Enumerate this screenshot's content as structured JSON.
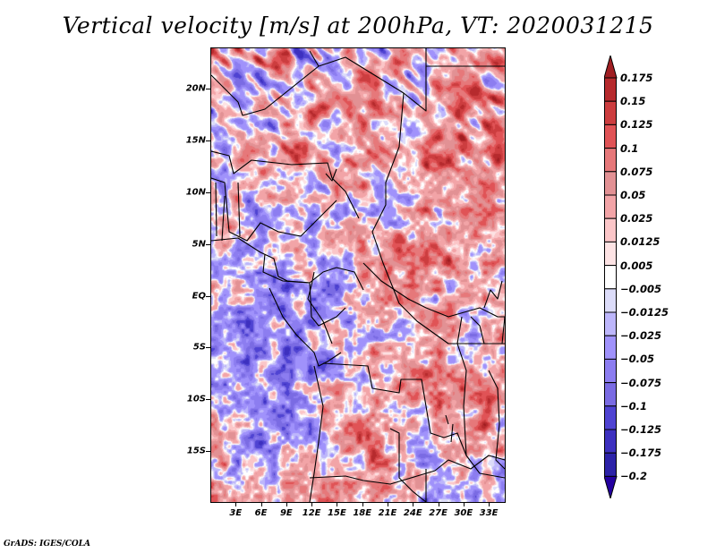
{
  "title": "Vertical velocity [m/s] at 200hPa, VT: 2020031215",
  "credit": "GrADS: IGES/COLA",
  "map": {
    "variable": "Vertical velocity",
    "units": "m/s",
    "level": "200hPa",
    "valid_time": "2020031215",
    "lon_range": [
      0,
      35
    ],
    "lat_range": [
      -20,
      24
    ],
    "lat_labels": [
      {
        "label": "20N",
        "lat": 20
      },
      {
        "label": "15N",
        "lat": 15
      },
      {
        "label": "10N",
        "lat": 10
      },
      {
        "label": "5N",
        "lat": 5
      },
      {
        "label": "EQ",
        "lat": 0
      },
      {
        "label": "5S",
        "lat": -5
      },
      {
        "label": "10S",
        "lat": -10
      },
      {
        "label": "15S",
        "lat": -15
      }
    ],
    "lon_labels": [
      {
        "label": "3E",
        "lon": 3
      },
      {
        "label": "6E",
        "lon": 6
      },
      {
        "label": "9E",
        "lon": 9
      },
      {
        "label": "12E",
        "lon": 12
      },
      {
        "label": "15E",
        "lon": 15
      },
      {
        "label": "18E",
        "lon": 18
      },
      {
        "label": "21E",
        "lon": 21
      },
      {
        "label": "24E",
        "lon": 24
      },
      {
        "label": "27E",
        "lon": 27
      },
      {
        "label": "30E",
        "lon": 30
      },
      {
        "label": "33E",
        "lon": 33
      }
    ]
  },
  "colorbar": {
    "labels": [
      "0.175",
      "0.15",
      "0.125",
      "0.1",
      "0.075",
      "0.05",
      "0.025",
      "0.0125",
      "0.005",
      "−0.005",
      "−0.0125",
      "−0.025",
      "−0.05",
      "−0.075",
      "−0.1",
      "−0.125",
      "−0.175",
      "−0.2"
    ],
    "colors_top_to_bottom": [
      "#a01e22",
      "#b62a2d",
      "#cc3d3f",
      "#e05356",
      "#e6787a",
      "#e29194",
      "#f2a4a7",
      "#fbc6c8",
      "#fde3e4",
      "#ffffff",
      "#dcdcf9",
      "#bdb6fb",
      "#a092fb",
      "#8c7df0",
      "#7a6be3",
      "#4f43d2",
      "#3d30bf",
      "#2c22a8",
      "#2400a0"
    ],
    "upper_arrow_color": "#a01e22",
    "lower_arrow_color": "#2400a0"
  }
}
